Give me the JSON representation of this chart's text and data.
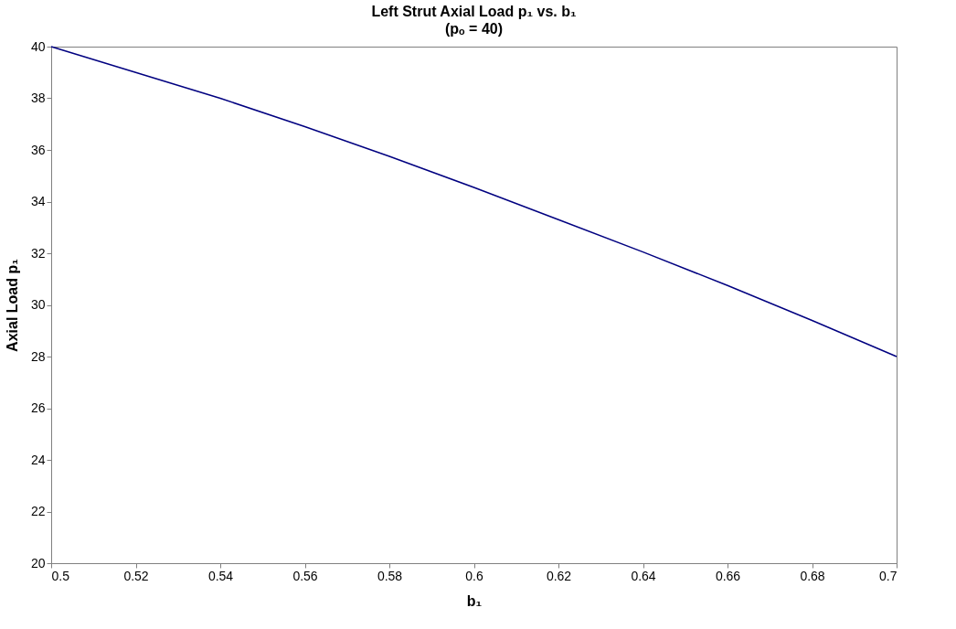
{
  "chart_data": {
    "type": "line",
    "title": "Left Strut Axial Load p₁ vs. b₁",
    "subtitle": "(pₒ = 40)",
    "xlabel": "b₁",
    "ylabel": "Axial Load p₁",
    "x": [
      0.5,
      0.52,
      0.54,
      0.56,
      0.58,
      0.6,
      0.62,
      0.64,
      0.66,
      0.68,
      0.7
    ],
    "series": [
      {
        "color": "#000080",
        "values": [
          40,
          39.0,
          38.0,
          36.9,
          35.75,
          34.55,
          33.3,
          32.05,
          30.75,
          29.4,
          28.0
        ]
      }
    ],
    "xlim": [
      0.5,
      0.7
    ],
    "xticks": [
      0.5,
      0.52,
      0.54,
      0.56,
      0.58,
      0.6,
      0.62,
      0.64,
      0.66,
      0.68,
      0.7
    ],
    "ylim": [
      20,
      40
    ],
    "yticks": [
      20,
      22,
      24,
      26,
      28,
      30,
      32,
      34,
      36,
      38,
      40
    ],
    "grid": false,
    "marker": "none",
    "line_style": "solid"
  }
}
